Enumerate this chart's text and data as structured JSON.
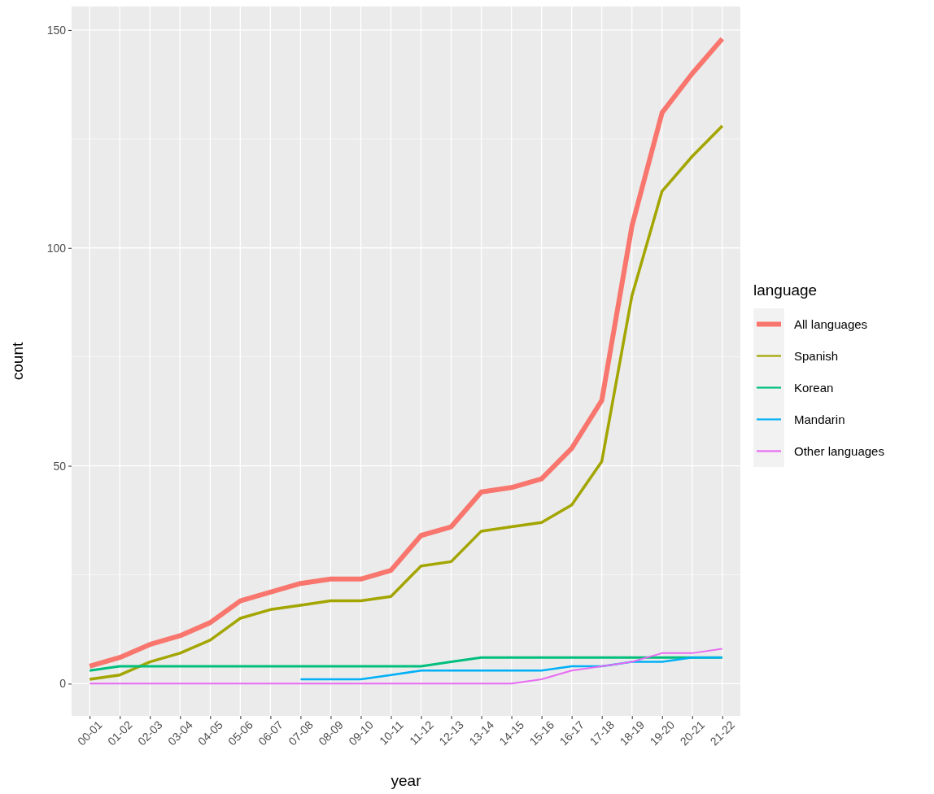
{
  "chart_data": {
    "type": "line",
    "xlabel": "year",
    "ylabel": "count",
    "legend_title": "language",
    "legend": "right",
    "grid": true,
    "categories": [
      "00-01",
      "01-02",
      "02-03",
      "03-04",
      "04-05",
      "05-06",
      "06-07",
      "07-08",
      "08-09",
      "09-10",
      "10-11",
      "11-12",
      "12-13",
      "13-14",
      "14-15",
      "15-16",
      "16-17",
      "17-18",
      "18-19",
      "19-20",
      "20-21",
      "21-22"
    ],
    "ylim": [
      -7.4,
      155.4
    ],
    "yticks": [
      0,
      50,
      100,
      150
    ],
    "series": [
      {
        "name": "All languages",
        "color": "#f8766d",
        "values": [
          4,
          6,
          9,
          11,
          14,
          19,
          21,
          23,
          24,
          24,
          26,
          34,
          36,
          44,
          45,
          47,
          54,
          65,
          105,
          131,
          140,
          148
        ]
      },
      {
        "name": "Spanish",
        "color": "#a3a500",
        "values": [
          1,
          2,
          5,
          7,
          10,
          15,
          17,
          18,
          19,
          19,
          20,
          27,
          28,
          35,
          36,
          37,
          41,
          51,
          89,
          113,
          121,
          128
        ]
      },
      {
        "name": "Korean",
        "color": "#00bf7d",
        "values": [
          3,
          4,
          4,
          4,
          4,
          4,
          4,
          4,
          4,
          4,
          4,
          4,
          5,
          6,
          6,
          6,
          6,
          6,
          6,
          6,
          6,
          6
        ]
      },
      {
        "name": "Mandarin",
        "color": "#00b0f6",
        "values": [
          null,
          null,
          null,
          null,
          null,
          null,
          null,
          1,
          1,
          1,
          2,
          3,
          3,
          3,
          3,
          3,
          4,
          4,
          5,
          5,
          6,
          6
        ]
      },
      {
        "name": "Other languages",
        "color": "#e76bf3",
        "values": [
          0,
          0,
          0,
          0,
          0,
          0,
          0,
          0,
          0,
          0,
          0,
          0,
          0,
          0,
          0,
          1,
          3,
          4,
          5,
          7,
          7,
          8
        ]
      }
    ]
  }
}
